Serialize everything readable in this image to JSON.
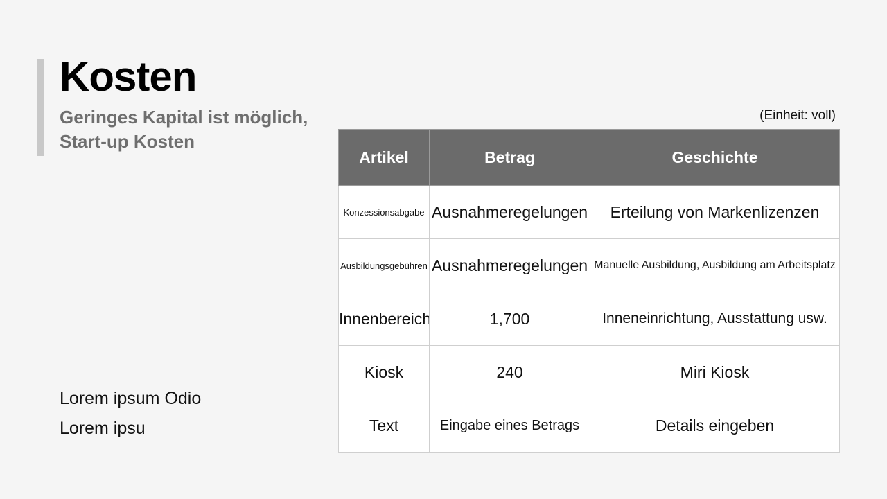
{
  "slide": {
    "title": "Kosten",
    "subtitle_line1": "Geringes Kapital ist möglich,",
    "subtitle_line2": "Start-up Kosten",
    "notes": [
      "Lorem ipsum Odio",
      "Lorem ipsu"
    ],
    "unit_label": "(Einheit: voll)",
    "accent_color": "#c8c8c8",
    "header_color": "#6b6b6b"
  },
  "table": {
    "headers": [
      "Artikel",
      "Betrag",
      "Geschichte"
    ],
    "rows": [
      [
        "Konzessionsabgabe",
        "Ausnahmeregelungen",
        "Erteilung von Markenlizenzen"
      ],
      [
        "Ausbildungsgebühren",
        "Ausnahmeregelungen",
        "Manuelle Ausbildung, Ausbildung am Arbeitsplatz"
      ],
      [
        "Innenbereich",
        "1,700",
        "Inneneinrichtung, Ausstattung usw."
      ],
      [
        "Kiosk",
        "240",
        "Miri Kiosk"
      ],
      [
        "Text",
        "Eingabe eines Betrags",
        "Details eingeben"
      ]
    ]
  }
}
